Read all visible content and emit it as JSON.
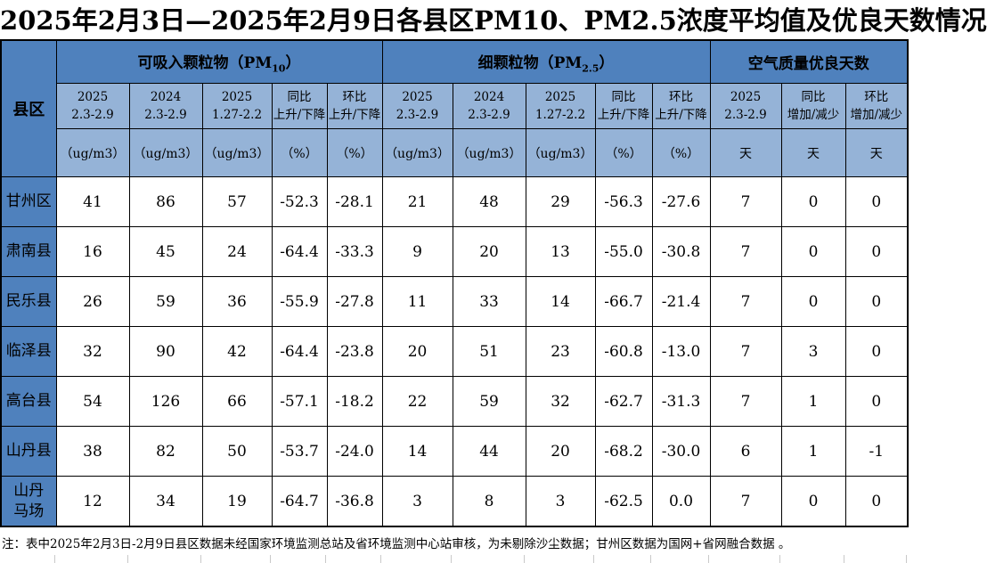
{
  "title": "2025年2月3日—2025年2月9日各县区PM10、PM2.5浓度平均值及优良天数情况",
  "table": {
    "corner_label": "县区",
    "sections": [
      {
        "prefix": "可吸入颗粒物（PM",
        "sub": "10",
        "suffix": "）"
      },
      {
        "prefix": "细颗粒物（PM",
        "sub": "2.5",
        "suffix": "）"
      },
      {
        "prefix": "空气质量优良天数",
        "sub": "",
        "suffix": ""
      }
    ],
    "subheaders": [
      "2025\n2.3-2.9",
      "2024\n2.3-2.9",
      "2025\n1.27-2.2",
      "同比\n上升/下降",
      "环比\n上升/下降",
      "2025\n2.3-2.9",
      "2024\n2.3-2.9",
      "2025\n1.27-2.2",
      "同比\n上升/下降",
      "环比\n上升/下降",
      "2025\n2.3-2.9",
      "同比\n增加/减少",
      "环比\n增加/减少"
    ],
    "units": [
      "（ug/m3）",
      "（ug/m3）",
      "（ug/m3）",
      "（%）",
      "（%）",
      "（ug/m3）",
      "（ug/m3）",
      "（ug/m3）",
      "（%）",
      "（%）",
      "天",
      "天",
      "天"
    ],
    "rows": [
      {
        "name": "甘州区",
        "values": [
          "41",
          "86",
          "57",
          "-52.3",
          "-28.1",
          "21",
          "48",
          "29",
          "-56.3",
          "-27.6",
          "7",
          "0",
          "0"
        ]
      },
      {
        "name": "肃南县",
        "values": [
          "16",
          "45",
          "24",
          "-64.4",
          "-33.3",
          "9",
          "20",
          "13",
          "-55.0",
          "-30.8",
          "7",
          "0",
          "0"
        ]
      },
      {
        "name": "民乐县",
        "values": [
          "26",
          "59",
          "36",
          "-55.9",
          "-27.8",
          "11",
          "33",
          "14",
          "-66.7",
          "-21.4",
          "7",
          "0",
          "0"
        ]
      },
      {
        "name": "临泽县",
        "values": [
          "32",
          "90",
          "42",
          "-64.4",
          "-23.8",
          "20",
          "51",
          "23",
          "-60.8",
          "-13.0",
          "7",
          "3",
          "0"
        ]
      },
      {
        "name": "高台县",
        "values": [
          "54",
          "126",
          "66",
          "-57.1",
          "-18.2",
          "22",
          "59",
          "32",
          "-62.7",
          "-31.3",
          "7",
          "1",
          "0"
        ]
      },
      {
        "name": "山丹县",
        "values": [
          "38",
          "82",
          "50",
          "-53.7",
          "-24.0",
          "14",
          "44",
          "20",
          "-68.2",
          "-30.0",
          "6",
          "1",
          "-1"
        ]
      },
      {
        "name": "山丹\n马场",
        "values": [
          "12",
          "34",
          "19",
          "-64.7",
          "-36.8",
          "3",
          "8",
          "3",
          "-62.5",
          "0.0",
          "7",
          "0",
          "0"
        ]
      }
    ]
  },
  "note": "注：表中2025年2月3日-2月9日县区数据未经国家环境监测总站及省环境监测中心站审核，为未剔除沙尘数据；甘州区数据为国网+省网融合数据 。",
  "colors": {
    "header_dark": "#4F81BD",
    "header_light": "#95B3D7",
    "border": "#000000",
    "text": "#000000"
  }
}
